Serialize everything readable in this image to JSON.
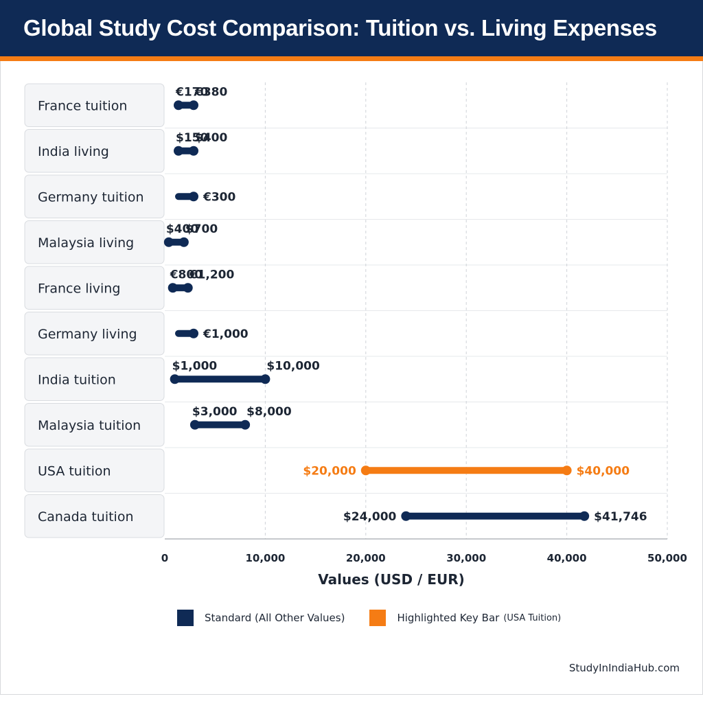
{
  "title": "Global Study Cost Comparison: Tuition vs. Living Expenses",
  "colors": {
    "header_bg": "#0f2a55",
    "accent": "#f57c14",
    "standard": "#0f2a55",
    "highlight": "#f57c14"
  },
  "legend": {
    "standard_label": "Standard (All Other Values)",
    "highlight_label": "Highlighted Key Bar",
    "highlight_sub": "(USA Tuition)"
  },
  "footer": "StudyInIndiaHub.com",
  "chart_data": {
    "type": "bar",
    "subtype": "range",
    "xlabel": "Values (USD / EUR)",
    "xlim": [
      0,
      50000
    ],
    "ticks": [
      0,
      10000,
      20000,
      30000,
      40000,
      50000
    ],
    "tick_labels": [
      "0",
      "10,000",
      "20,000",
      "30,000",
      "40,000",
      "50,000"
    ],
    "grid": true,
    "legend_position": "bottom",
    "rows": [
      {
        "category": "France tuition",
        "low": 170,
        "high": 380,
        "low_label": "€170",
        "high_label": "€380",
        "highlight": false
      },
      {
        "category": "India living",
        "low": 150,
        "high": 400,
        "low_label": "$150",
        "high_label": "$400",
        "highlight": false
      },
      {
        "category": "Germany tuition",
        "low": 0,
        "high": 300,
        "low_label": "",
        "high_label": "€300",
        "highlight": false
      },
      {
        "category": "Malaysia living",
        "low": 400,
        "high": 700,
        "low_label": "$400",
        "high_label": "$700",
        "highlight": false
      },
      {
        "category": "France living",
        "low": 800,
        "high": 1200,
        "low_label": "€800",
        "high_label": "€1,200",
        "highlight": false
      },
      {
        "category": "Germany living",
        "low": 0,
        "high": 1000,
        "low_label": "",
        "high_label": "€1,000",
        "highlight": false
      },
      {
        "category": "India tuition",
        "low": 1000,
        "high": 10000,
        "low_label": "$1,000",
        "high_label": "$10,000",
        "highlight": false
      },
      {
        "category": "Malaysia tuition",
        "low": 3000,
        "high": 8000,
        "low_label": "$3,000",
        "high_label": "$8,000",
        "highlight": false
      },
      {
        "category": "USA tuition",
        "low": 20000,
        "high": 40000,
        "low_label": "$20,000",
        "high_label": "$40,000",
        "highlight": true
      },
      {
        "category": "Canada tuition",
        "low": 24000,
        "high": 41746,
        "low_label": "$24,000",
        "high_label": "$41,746",
        "highlight": false
      }
    ]
  }
}
